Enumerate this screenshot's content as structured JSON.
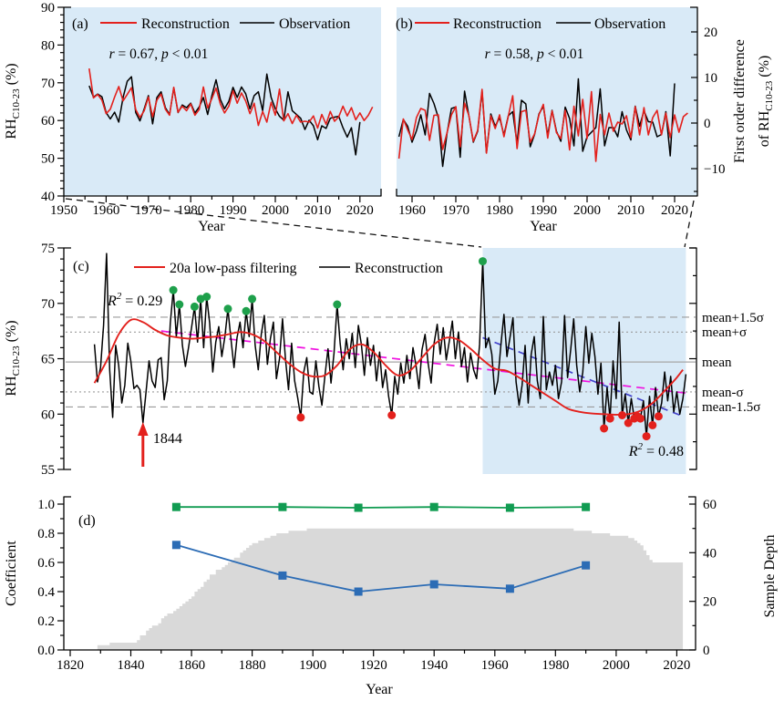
{
  "colors": {
    "plot_background": "#d9eaf7",
    "red_line": "#e3211d",
    "black_line": "#000000",
    "wet_dot_green": "#1ea04b",
    "dry_dot_red": "#e3211d",
    "magenta_trend": "#f012e0",
    "purple_trend": "#4444cc",
    "purple_text": "#6633cc",
    "green_series": "#119c52",
    "blue_series": "#2c6cb5",
    "sample_depth_gray": "#d9d9d9",
    "mean_line_gray": "#a6a6a6",
    "sigma_line_gray": "#9b9b9b"
  },
  "chart_data": [
    {
      "id": "a",
      "type": "line",
      "label": "(a)",
      "xlabel": "Year",
      "ylabel_runs": [
        {
          "t": "RH"
        },
        {
          "t": "C10-23",
          "sub": true
        },
        {
          "t": " (%)"
        }
      ],
      "xlim": [
        1950,
        2025
      ],
      "ylim": [
        40,
        90
      ],
      "xticks": [
        1950,
        1960,
        1970,
        1980,
        1990,
        2000,
        2010,
        2020
      ],
      "xtick_labels": [
        "1950",
        "1960",
        "1970",
        "1980",
        "1990",
        "2000",
        "2010",
        "2020"
      ],
      "yticks": [
        40,
        50,
        60,
        70,
        80,
        90
      ],
      "ytick_labels": [
        "40",
        "50",
        "60",
        "70",
        "80",
        "90"
      ],
      "annotation_runs": [
        {
          "t": "r",
          "i": true
        },
        {
          "t": " = 0.67, "
        },
        {
          "t": "p",
          "i": true
        },
        {
          "t": " < 0.01"
        }
      ],
      "legend": [
        {
          "label": "Reconstruction",
          "color": "#e3211d"
        },
        {
          "label": "Observation",
          "color": "#000000"
        }
      ],
      "series": [
        {
          "name": "Observation",
          "color": "#000000",
          "x_start": 1956,
          "values": [
            69.2,
            66.2,
            67.0,
            66.3,
            62.1,
            60.4,
            62.2,
            59.6,
            66.1,
            70.4,
            71.6,
            62.1,
            59.9,
            63.1,
            66.6,
            59.1,
            66.1,
            67.6,
            63.4,
            61.6,
            68.6,
            62.1,
            64.1,
            63.4,
            64.6,
            62.0,
            63.6,
            66.1,
            61.6,
            66.6,
            70.8,
            65.6,
            63.1,
            65.1,
            68.8,
            66.1,
            68.9,
            67.1,
            63.1,
            66.6,
            67.6,
            62.6,
            72.3,
            66.1,
            63.1,
            61.1,
            60.1,
            67.6,
            62.6,
            61.6,
            60.6,
            57.6,
            60.1,
            58.6,
            54.9,
            58.6,
            57.9,
            60.6,
            60.9,
            61.1,
            58.1,
            55.6,
            58.1,
            50.9,
            59.6
          ]
        },
        {
          "name": "Reconstruction",
          "color": "#e3211d",
          "source": "reconstruction",
          "from_year": 1956
        }
      ]
    },
    {
      "id": "b",
      "type": "line",
      "label": "(b)",
      "xlabel": "Year",
      "ylabel_lines": [
        [
          {
            "t": "First order difference"
          }
        ],
        [
          {
            "t": "of RH"
          },
          {
            "t": "C10-23",
            "sub": true
          },
          {
            "t": " (%)"
          }
        ]
      ],
      "xlim": [
        1955,
        2025
      ],
      "ylim": [
        -16,
        25.4
      ],
      "xticks": [
        1960,
        1970,
        1980,
        1990,
        2000,
        2010,
        2020
      ],
      "xtick_labels": [
        "1960",
        "1970",
        "1980",
        "1990",
        "2000",
        "2010",
        "2020"
      ],
      "yticks": [
        -10,
        0,
        10,
        20
      ],
      "ytick_labels": [
        "−10",
        "0",
        "10",
        "20"
      ],
      "annotation_runs": [
        {
          "t": "r",
          "i": true
        },
        {
          "t": " = 0.58, "
        },
        {
          "t": "p",
          "i": true
        },
        {
          "t": " < 0.01"
        }
      ],
      "legend": [
        {
          "label": "Reconstruction",
          "color": "#e3211d"
        },
        {
          "label": "Observation",
          "color": "#000000"
        }
      ],
      "series_note": "first order differences of panel (a) series",
      "series": [
        {
          "name": "Observation",
          "color": "#000000",
          "derive": "diff-observation"
        },
        {
          "name": "Reconstruction",
          "color": "#e3211d",
          "derive": "diff-reconstruction"
        }
      ]
    },
    {
      "id": "c",
      "type": "line",
      "label": "(c)",
      "ylabel_runs": [
        {
          "t": "RH"
        },
        {
          "t": "C10-23",
          "sub": true
        },
        {
          "t": " (%)"
        }
      ],
      "xlim": [
        1818,
        2026
      ],
      "ylim": [
        55,
        75
      ],
      "yticks": [
        55,
        60,
        65,
        70,
        75
      ],
      "ytick_labels": [
        "55",
        "60",
        "65",
        "70",
        "75"
      ],
      "legend": [
        {
          "label": "20a low-pass filtering",
          "color": "#e3211d"
        },
        {
          "label": "Reconstruction",
          "color": "#000000"
        }
      ],
      "mean": 64.7,
      "sigma": 2.7,
      "mean_labels": [
        "mean+1.5σ",
        "mean+σ",
        "mean",
        "mean-σ",
        "mean-1.5σ"
      ],
      "shaded_region_years": [
        1956,
        2023
      ],
      "reconstruction": {
        "x_start": 1828,
        "values": [
          66.3,
          62.9,
          64.2,
          68.0,
          74.5,
          64.0,
          59.7,
          66.2,
          64.4,
          61.0,
          62.6,
          66.4,
          64.8,
          62.3,
          62.6,
          62.2,
          59.2,
          62.0,
          64.8,
          63.0,
          62.4,
          64.9,
          65.1,
          61.3,
          63.0,
          68.2,
          71.2,
          67.0,
          69.9,
          66.2,
          64.3,
          66.0,
          67.8,
          69.7,
          66.5,
          70.4,
          66.0,
          70.6,
          68.2,
          63.8,
          66.5,
          67.9,
          65.2,
          67.0,
          69.5,
          66.8,
          64.2,
          66.9,
          68.3,
          66.0,
          69.3,
          67.0,
          70.4,
          66.2,
          64.0,
          67.2,
          68.9,
          64.5,
          66.8,
          68.3,
          63.2,
          65.0,
          68.6,
          64.9,
          62.2,
          66.4,
          63.0,
          61.5,
          59.7,
          63.8,
          65.1,
          62.0,
          61.8,
          64.8,
          62.5,
          60.8,
          63.5,
          65.9,
          62.8,
          65.5,
          69.9,
          66.4,
          64.0,
          66.8,
          65.0,
          67.3,
          64.2,
          68.0,
          66.3,
          63.5,
          66.9,
          64.4,
          66.2,
          63.0,
          65.6,
          62.4,
          64.0,
          61.6,
          59.9,
          63.4,
          61.8,
          64.6,
          62.8,
          65.3,
          63.2,
          66.0,
          64.4,
          62.3,
          65.8,
          67.2,
          64.6,
          62.8,
          66.4,
          68.1,
          65.4,
          67.8,
          64.9,
          66.6,
          68.4,
          65.0,
          67.4,
          64.3,
          66.0,
          62.9,
          65.5,
          64.0,
          63.2,
          66.3,
          73.8,
          66.0,
          66.9,
          65.4,
          61.8,
          63.0,
          66.2,
          69.0,
          65.2,
          66.9,
          68.7,
          62.9,
          60.8,
          62.6,
          66.2,
          61.0,
          65.4,
          67.0,
          63.0,
          61.4,
          68.8,
          62.2,
          63.8,
          62.6,
          64.4,
          61.4,
          62.9,
          68.9,
          63.3,
          65.8,
          68.6,
          64.4,
          62.0,
          63.8,
          67.9,
          64.6,
          67.3,
          65.2,
          61.8,
          64.6,
          58.7,
          62.4,
          59.6,
          64.8,
          61.4,
          68.3,
          59.9,
          61.8,
          59.2,
          61.4,
          59.6,
          59.8,
          59.6,
          61.2,
          58.0,
          61.6,
          59.0,
          62.4,
          59.8,
          61.0,
          63.8,
          61.2,
          63.4,
          60.2,
          62.0,
          60.0,
          61.4,
          63.6
        ]
      },
      "lowpass_points": [
        [
          1828,
          62.8
        ],
        [
          1832,
          64.8
        ],
        [
          1836,
          67.2
        ],
        [
          1840,
          68.5
        ],
        [
          1844,
          68.3
        ],
        [
          1848,
          67.6
        ],
        [
          1852,
          67.1
        ],
        [
          1856,
          66.9
        ],
        [
          1860,
          66.8
        ],
        [
          1864,
          66.9
        ],
        [
          1868,
          67.0
        ],
        [
          1872,
          67.2
        ],
        [
          1876,
          67.4
        ],
        [
          1880,
          67.2
        ],
        [
          1884,
          66.6
        ],
        [
          1888,
          65.6
        ],
        [
          1892,
          64.6
        ],
        [
          1896,
          63.8
        ],
        [
          1900,
          63.4
        ],
        [
          1904,
          63.5
        ],
        [
          1908,
          64.4
        ],
        [
          1912,
          65.8
        ],
        [
          1916,
          66.3
        ],
        [
          1920,
          65.6
        ],
        [
          1924,
          64.4
        ],
        [
          1928,
          63.5
        ],
        [
          1932,
          63.9
        ],
        [
          1936,
          65.1
        ],
        [
          1940,
          66.3
        ],
        [
          1944,
          66.9
        ],
        [
          1948,
          66.7
        ],
        [
          1952,
          65.9
        ],
        [
          1956,
          64.9
        ],
        [
          1960,
          64.1
        ],
        [
          1964,
          63.9
        ],
        [
          1968,
          63.3
        ],
        [
          1972,
          62.6
        ],
        [
          1976,
          61.9
        ],
        [
          1980,
          61.2
        ],
        [
          1984,
          60.5
        ],
        [
          1988,
          60.2
        ],
        [
          1992,
          60.05
        ],
        [
          1996,
          60.0
        ],
        [
          2000,
          59.95
        ],
        [
          2004,
          60.0
        ],
        [
          2008,
          60.3
        ],
        [
          2012,
          61.0
        ],
        [
          2016,
          62.1
        ],
        [
          2020,
          63.3
        ],
        [
          2022,
          64.0
        ]
      ],
      "trend_full": {
        "x1": 1850,
        "y1": 67.5,
        "x2": 2023,
        "y2": 61.9,
        "color": "#f012e0",
        "r2_runs": [
          {
            "t": "R",
            "i": true
          },
          {
            "t": "2",
            "sup": true,
            "i": true
          },
          {
            "t": " = 0.29"
          }
        ]
      },
      "trend_obs_period": {
        "x1": 1956,
        "y1": 66.9,
        "x2": 2022,
        "y2": 59.8,
        "color": "#4444cc",
        "r2_runs": [
          {
            "t": "R",
            "i": true
          },
          {
            "t": "2",
            "sup": true,
            "i": true
          },
          {
            "t": " = 0.48"
          }
        ]
      },
      "wet_years": {
        "color": "#1ea04b",
        "points": [
          [
            1854,
            71.2
          ],
          [
            1856,
            69.9
          ],
          [
            1861,
            69.7
          ],
          [
            1863,
            70.4
          ],
          [
            1865,
            70.6
          ],
          [
            1872,
            69.5
          ],
          [
            1878,
            69.3
          ],
          [
            1880,
            70.4
          ],
          [
            1908,
            69.9
          ],
          [
            1956,
            73.8
          ]
        ]
      },
      "dry_years": {
        "color": "#e3211d",
        "points": [
          [
            1896,
            59.7
          ],
          [
            1926,
            59.9
          ],
          [
            1996,
            58.7
          ],
          [
            1998,
            59.6
          ],
          [
            2002,
            59.9
          ],
          [
            2004,
            59.2
          ],
          [
            2006,
            59.6
          ],
          [
            2007,
            59.8
          ],
          [
            2008,
            59.6
          ],
          [
            2010,
            58.0
          ],
          [
            2012,
            59.0
          ],
          [
            2014,
            59.8
          ]
        ]
      },
      "arrow": {
        "year": 1844,
        "label": "1844",
        "color": "#e3211d"
      }
    },
    {
      "id": "d",
      "type": "line",
      "label": "(d)",
      "xlabel": "Year",
      "ylabel": "Coefficient",
      "y2label": "Sample Depth",
      "xlim": [
        1818,
        2026
      ],
      "ylim": [
        0,
        1.05
      ],
      "y2lim": [
        0,
        63
      ],
      "xticks": [
        1820,
        1840,
        1860,
        1880,
        1900,
        1920,
        1940,
        1960,
        1980,
        2000,
        2020
      ],
      "xtick_labels": [
        "1820",
        "1840",
        "1860",
        "1880",
        "1900",
        "1920",
        "1940",
        "1960",
        "1980",
        "2000",
        "2020"
      ],
      "yticks": [
        0,
        0.2,
        0.4,
        0.6,
        0.8,
        1
      ],
      "ytick_labels": [
        "0.0",
        "0.2",
        "0.4",
        "0.6",
        "0.8",
        "1.0"
      ],
      "y2ticks": [
        0,
        20,
        40,
        60
      ],
      "y2tick_labels": [
        "0",
        "20",
        "40",
        "60"
      ],
      "series": [
        {
          "name": "green-coefficient",
          "color": "#119c52",
          "marker": "square",
          "x": [
            1855,
            1890,
            1915,
            1940,
            1965,
            1990
          ],
          "y": [
            0.98,
            0.98,
            0.975,
            0.98,
            0.975,
            0.98
          ]
        },
        {
          "name": "blue-coefficient",
          "color": "#2c6cb5",
          "marker": "square",
          "x": [
            1855,
            1890,
            1915,
            1940,
            1965,
            1990
          ],
          "y": [
            0.72,
            0.51,
            0.4,
            0.45,
            0.42,
            0.58
          ]
        }
      ],
      "sample_depth": {
        "color": "#d9d9d9",
        "points": [
          [
            1828,
            0
          ],
          [
            1829,
            2
          ],
          [
            1832,
            2
          ],
          [
            1833,
            3
          ],
          [
            1841,
            3
          ],
          [
            1842,
            4
          ],
          [
            1843,
            6
          ],
          [
            1845,
            8
          ],
          [
            1846,
            9
          ],
          [
            1847,
            10
          ],
          [
            1849,
            11
          ],
          [
            1850,
            13
          ],
          [
            1851,
            14
          ],
          [
            1852,
            15
          ],
          [
            1854,
            16
          ],
          [
            1855,
            17
          ],
          [
            1856,
            18
          ],
          [
            1857,
            19
          ],
          [
            1858,
            20
          ],
          [
            1859,
            21
          ],
          [
            1860,
            22
          ],
          [
            1861,
            24
          ],
          [
            1862,
            25
          ],
          [
            1863,
            26
          ],
          [
            1864,
            28
          ],
          [
            1865,
            29
          ],
          [
            1866,
            31
          ],
          [
            1868,
            33
          ],
          [
            1870,
            34
          ],
          [
            1871,
            35
          ],
          [
            1872,
            36
          ],
          [
            1873,
            37
          ],
          [
            1874,
            38
          ],
          [
            1876,
            40
          ],
          [
            1877,
            41
          ],
          [
            1878,
            42
          ],
          [
            1879,
            43
          ],
          [
            1880,
            44
          ],
          [
            1882,
            45
          ],
          [
            1884,
            46
          ],
          [
            1886,
            47
          ],
          [
            1888,
            48
          ],
          [
            1892,
            49
          ],
          [
            1898,
            50
          ],
          [
            1984,
            50
          ],
          [
            1986,
            49
          ],
          [
            1992,
            48
          ],
          [
            1998,
            47
          ],
          [
            2004,
            46
          ],
          [
            2006,
            45
          ],
          [
            2007,
            44
          ],
          [
            2008,
            43
          ],
          [
            2009,
            41
          ],
          [
            2010,
            39
          ],
          [
            2011,
            37
          ],
          [
            2012,
            36
          ],
          [
            2022,
            36
          ],
          [
            2022,
            0
          ]
        ]
      }
    }
  ]
}
